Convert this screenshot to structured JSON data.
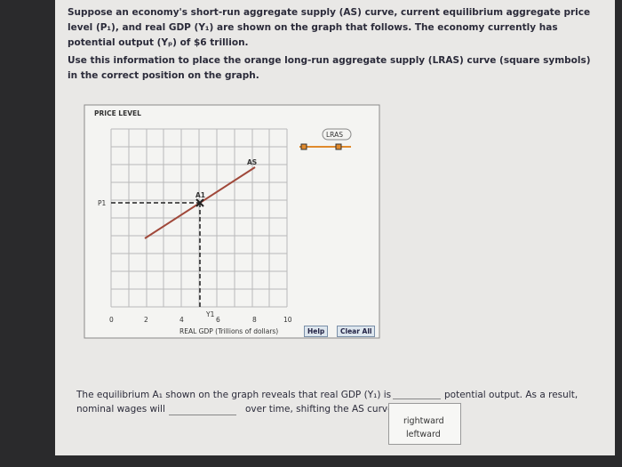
{
  "intro": "Suppose an economy's short-run aggregate supply (AS) curve, current equilibrium aggregate price level (P₁), and real GDP (Y₁) are shown on the graph that follows. The economy currently has potential output (Yₚ) of $6 trillion.",
  "instruction": "Use this information to place the orange long-run aggregate supply (LRAS) curve (square symbols) in the correct position on the graph.",
  "graph": {
    "y_axis_title": "PRICE LEVEL",
    "lras_label": "LRAS",
    "as_label": "AS",
    "a1_label": "A1",
    "p1_label": "P1",
    "y1_label": "Y1",
    "x_tick_labels": [
      "0",
      "2",
      "4",
      "6",
      "8",
      "10"
    ],
    "x_axis_title": "REAL GDP (Trillions of dollars)",
    "help_button": "Help",
    "clear_all_button": "Clear All"
  },
  "answer": {
    "line1_start": "The equilibrium A₁ shown on the graph reveals that real GDP (Y₁) is",
    "line1_end": "potential output. As a result,",
    "line2_start": "nominal wages will",
    "line2_end": "over time, shifting the AS curve",
    "options": [
      "rightward",
      "leftward"
    ]
  }
}
